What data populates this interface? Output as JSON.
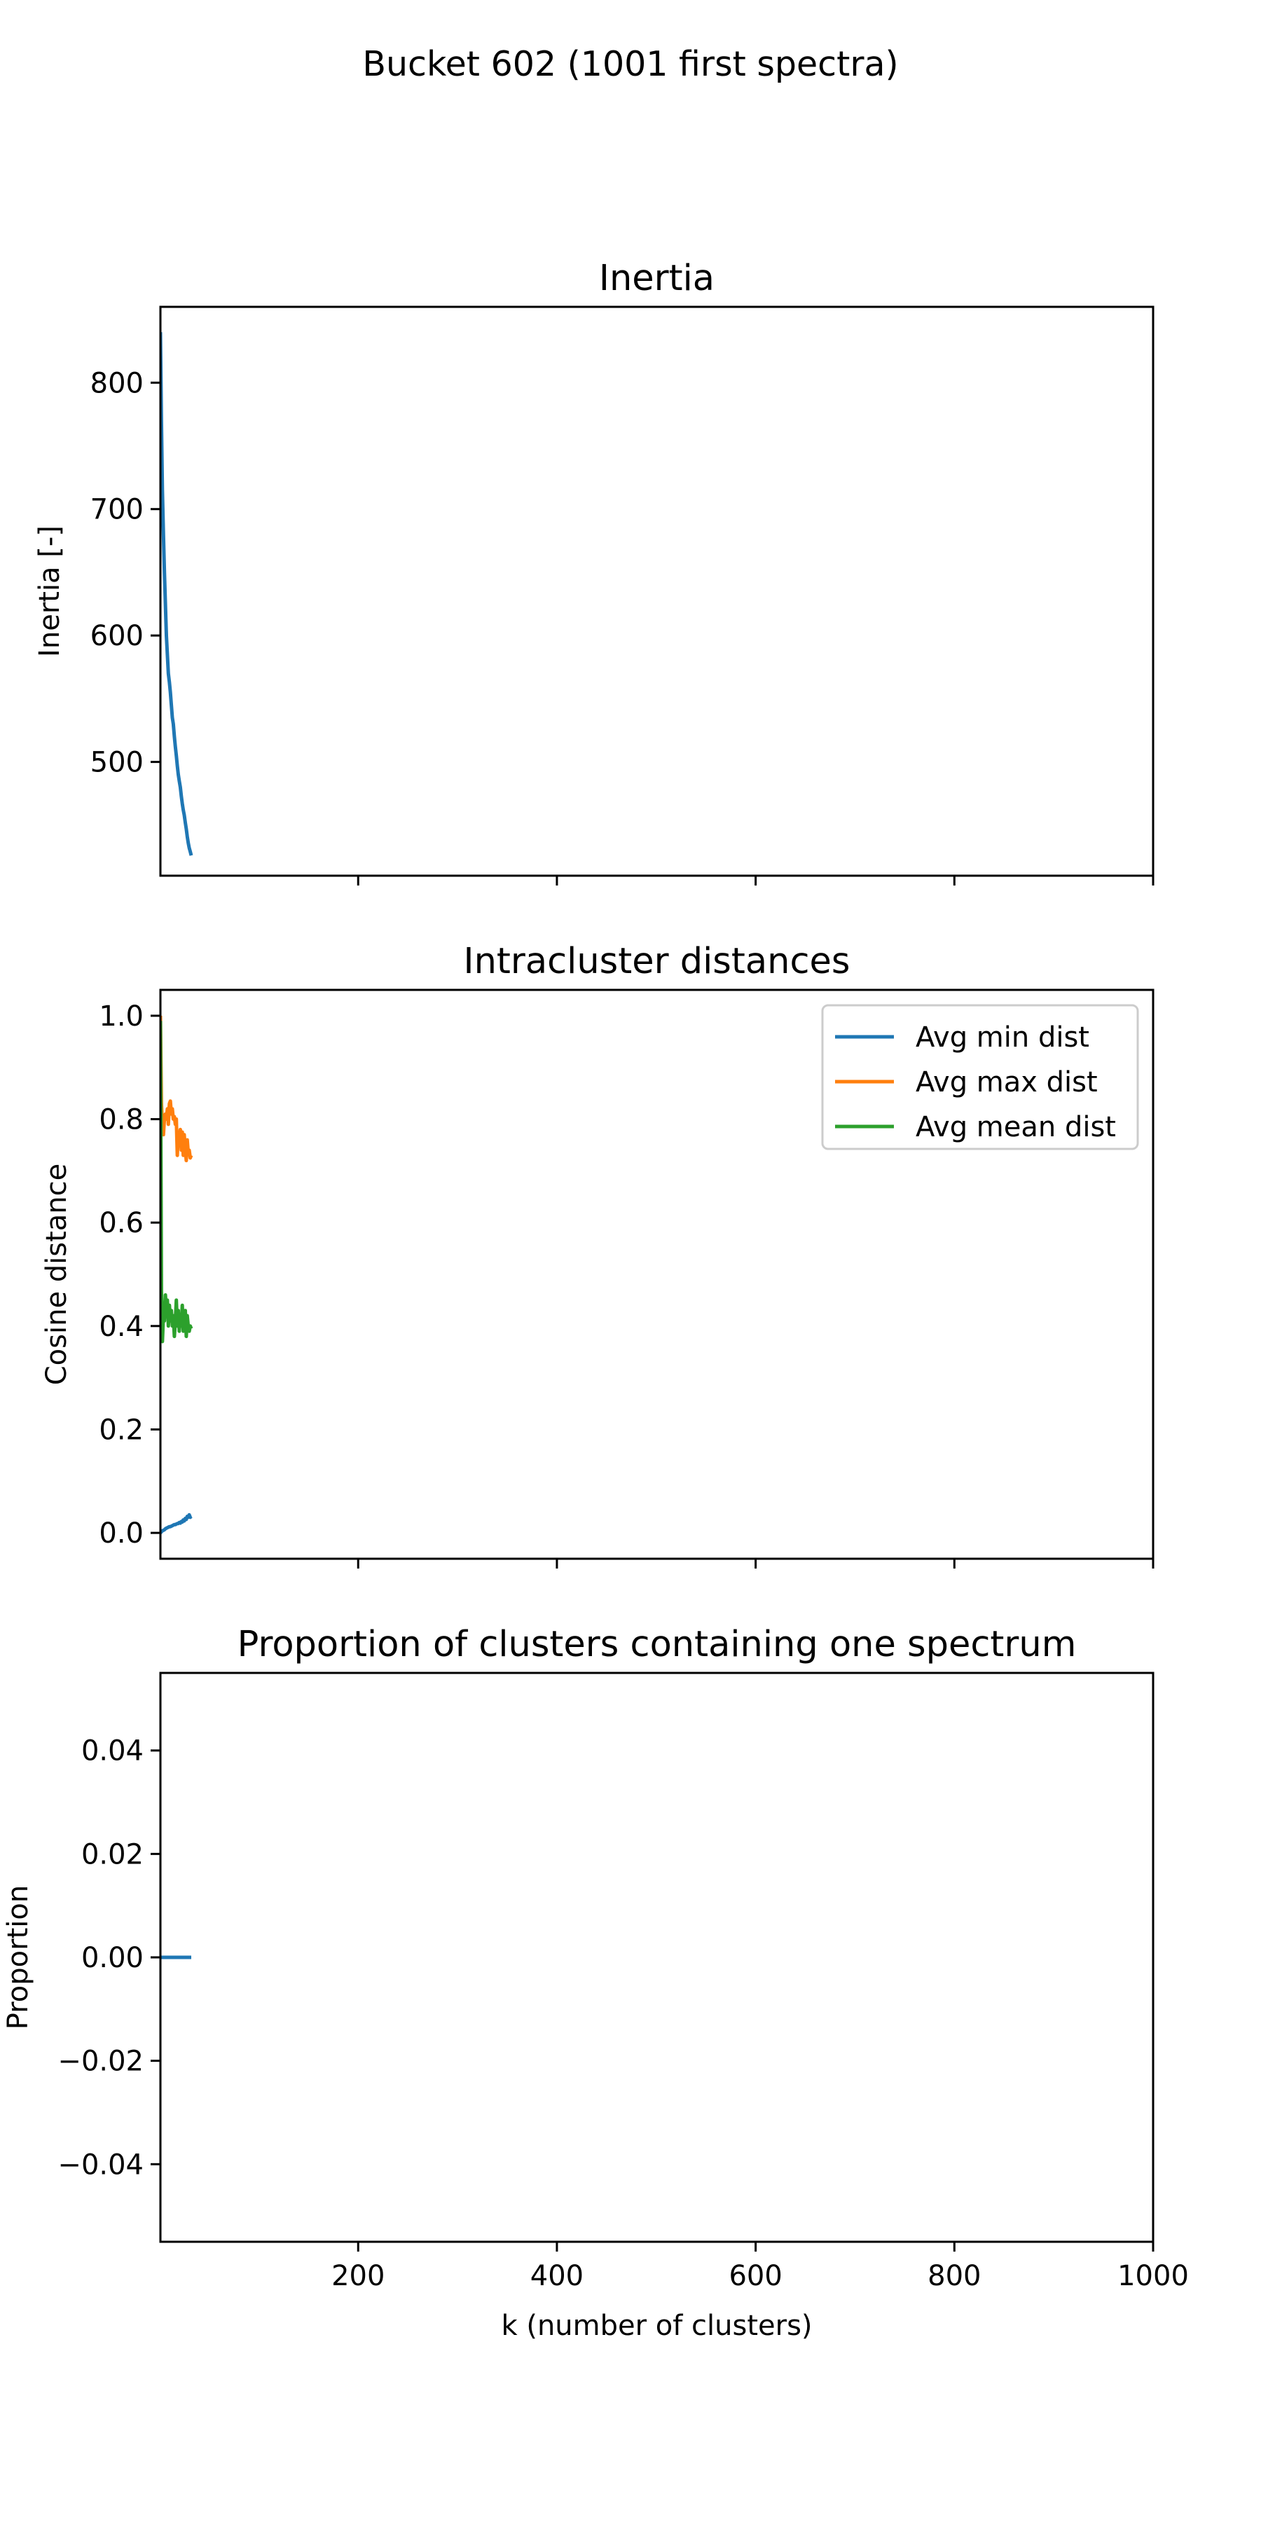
{
  "suptitle": "Bucket 602 (1001 first spectra)",
  "xlabel": "k (number of clusters)",
  "x_tick_labels": [
    "200",
    "400",
    "600",
    "800",
    "1000"
  ],
  "chart_data": [
    {
      "type": "line",
      "title": "Inertia",
      "xlabel": "",
      "ylabel": "Inertia [-]",
      "xlim": [
        1,
        1000
      ],
      "ylim": [
        410,
        860
      ],
      "yticks": [
        500,
        600,
        700,
        800
      ],
      "ytick_labels": [
        "500",
        "600",
        "700",
        "800"
      ],
      "grid": false,
      "legend": null,
      "series": [
        {
          "color": "#1f77b4",
          "x": [
            1,
            2,
            3,
            4,
            5,
            6,
            7,
            8,
            9,
            10,
            11,
            12,
            13,
            14,
            15,
            16,
            17,
            18,
            19,
            20,
            21,
            22,
            23,
            24,
            25,
            26,
            27,
            28,
            29,
            30,
            31,
            32
          ],
          "y": [
            840,
            770,
            715,
            680,
            650,
            625,
            600,
            585,
            570,
            563,
            555,
            545,
            535,
            530,
            520,
            512,
            505,
            497,
            490,
            485,
            480,
            473,
            467,
            462,
            458,
            452,
            447,
            441,
            436,
            432,
            429,
            426
          ]
        }
      ]
    },
    {
      "type": "line",
      "title": "Intracluster distances",
      "xlabel": "",
      "ylabel": "Cosine distance",
      "xlim": [
        1,
        1000
      ],
      "ylim": [
        -0.05,
        1.05
      ],
      "yticks": [
        0.0,
        0.2,
        0.4,
        0.6,
        0.8,
        1.0
      ],
      "ytick_labels": [
        "0.0",
        "0.2",
        "0.4",
        "0.6",
        "0.8",
        "1.0"
      ],
      "grid": false,
      "legend": "top-right",
      "series": [
        {
          "name": "Avg min dist",
          "color": "#1f77b4",
          "x": [
            1,
            2,
            3,
            4,
            5,
            6,
            7,
            8,
            9,
            10,
            11,
            12,
            13,
            14,
            15,
            16,
            17,
            18,
            19,
            20,
            21,
            22,
            23,
            24,
            25,
            26,
            27,
            28,
            29,
            30,
            31,
            32
          ],
          "y": [
            0.0,
            0.002,
            0.004,
            0.005,
            0.006,
            0.008,
            0.009,
            0.01,
            0.011,
            0.012,
            0.012,
            0.013,
            0.014,
            0.015,
            0.016,
            0.016,
            0.017,
            0.018,
            0.018,
            0.02,
            0.019,
            0.022,
            0.021,
            0.025,
            0.023,
            0.028,
            0.026,
            0.032,
            0.03,
            0.035,
            0.03,
            0.032
          ]
        },
        {
          "name": "Avg max dist",
          "color": "#ff7f0e",
          "x": [
            1,
            2,
            3,
            4,
            5,
            6,
            7,
            8,
            9,
            10,
            11,
            12,
            13,
            14,
            15,
            16,
            17,
            18,
            19,
            20,
            21,
            22,
            23,
            24,
            25,
            26,
            27,
            28,
            29,
            30,
            31,
            32
          ],
          "y": [
            1.0,
            0.83,
            0.79,
            0.77,
            0.8,
            0.81,
            0.8,
            0.82,
            0.79,
            0.83,
            0.835,
            0.81,
            0.82,
            0.8,
            0.805,
            0.79,
            0.8,
            0.73,
            0.775,
            0.76,
            0.78,
            0.74,
            0.775,
            0.73,
            0.77,
            0.74,
            0.72,
            0.76,
            0.735,
            0.74,
            0.725,
            0.73
          ]
        },
        {
          "name": "Avg mean dist",
          "color": "#2ca02c",
          "x": [
            1,
            2,
            3,
            4,
            5,
            6,
            7,
            8,
            9,
            10,
            11,
            12,
            13,
            14,
            15,
            16,
            17,
            18,
            19,
            20,
            21,
            22,
            23,
            24,
            25,
            26,
            27,
            28,
            29,
            30,
            31,
            32
          ],
          "y": [
            0.99,
            0.47,
            0.37,
            0.42,
            0.41,
            0.46,
            0.43,
            0.45,
            0.4,
            0.44,
            0.41,
            0.43,
            0.4,
            0.42,
            0.38,
            0.41,
            0.45,
            0.4,
            0.43,
            0.39,
            0.42,
            0.4,
            0.44,
            0.39,
            0.41,
            0.43,
            0.38,
            0.42,
            0.4,
            0.39,
            0.4,
            0.395
          ]
        }
      ]
    },
    {
      "type": "line",
      "title": "Proportion of clusters containing one spectrum",
      "xlabel": "k (number of clusters)",
      "ylabel": "Proportion",
      "xlim": [
        1,
        1000
      ],
      "ylim": [
        -0.055,
        0.055
      ],
      "yticks": [
        -0.04,
        -0.02,
        0.0,
        0.02,
        0.04
      ],
      "ytick_labels": [
        "−0.04",
        "−0.02",
        "0.00",
        "0.02",
        "0.04"
      ],
      "grid": false,
      "legend": null,
      "series": [
        {
          "color": "#1f77b4",
          "x": [
            1,
            32
          ],
          "y": [
            0.0,
            0.0
          ]
        }
      ]
    }
  ]
}
